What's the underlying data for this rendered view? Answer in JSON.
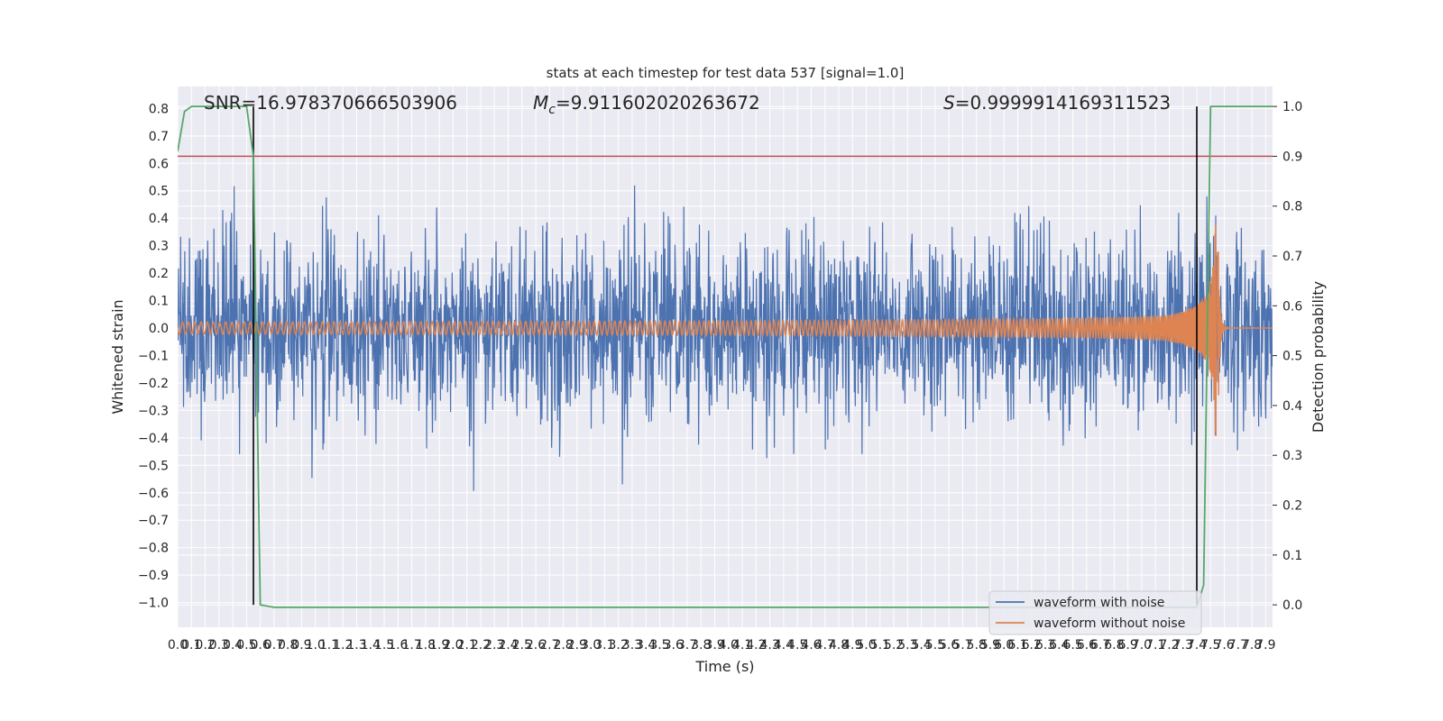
{
  "chart_data": {
    "type": "line",
    "title": "stats at each timestep for test data 537 [signal=1.0]",
    "xlabel": "Time (s)",
    "ylabel": "Whitened strain",
    "y2label": "Detection probability",
    "xlim": [
      0.0,
      7.95
    ],
    "ylim": [
      -1.09,
      0.88
    ],
    "y2lim": [
      -0.045,
      1.04
    ],
    "x_ticks": [
      "0.0",
      "0.1",
      "0.2",
      "0.3",
      "0.4",
      "0.5",
      "0.6",
      "0.7",
      "0.8",
      "0.9",
      "1.0",
      "1.1",
      "1.2",
      "1.3",
      "1.4",
      "1.5",
      "1.6",
      "1.7",
      "1.8",
      "1.9",
      "2.0",
      "2.1",
      "2.2",
      "2.3",
      "2.4",
      "2.5",
      "2.6",
      "2.7",
      "2.8",
      "2.9",
      "3.0",
      "3.1",
      "3.2",
      "3.3",
      "3.4",
      "3.5",
      "3.6",
      "3.7",
      "3.8",
      "3.9",
      "4.0",
      "4.1",
      "4.2",
      "4.3",
      "4.4",
      "4.5",
      "4.6",
      "4.7",
      "4.8",
      "4.9",
      "5.0",
      "5.1",
      "5.2",
      "5.3",
      "5.4",
      "5.5",
      "5.6",
      "5.7",
      "5.8",
      "5.9",
      "6.0",
      "6.1",
      "6.2",
      "6.3",
      "6.4",
      "6.5",
      "6.6",
      "6.7",
      "6.8",
      "6.9",
      "7.0",
      "7.1",
      "7.2",
      "7.3",
      "7.4",
      "7.5",
      "7.6",
      "7.7",
      "7.8",
      "7.9"
    ],
    "y_ticks": [
      -1.0,
      -0.9,
      -0.8,
      -0.7,
      -0.6,
      -0.5,
      -0.4,
      -0.3,
      -0.2,
      -0.1,
      0.0,
      0.1,
      0.2,
      0.3,
      0.4,
      0.5,
      0.6,
      0.7,
      0.8
    ],
    "y_tick_labels": [
      "−1.0",
      "−0.9",
      "−0.8",
      "−0.7",
      "−0.6",
      "−0.5",
      "−0.4",
      "−0.3",
      "−0.2",
      "−0.1",
      "0.0",
      "0.1",
      "0.2",
      "0.3",
      "0.4",
      "0.5",
      "0.6",
      "0.7",
      "0.8"
    ],
    "y2_ticks": [
      0.0,
      0.1,
      0.2,
      0.3,
      0.4,
      0.5,
      0.6,
      0.7,
      0.8,
      0.9,
      1.0
    ],
    "y2_tick_labels": [
      "0.0",
      "0.1",
      "0.2",
      "0.3",
      "0.4",
      "0.5",
      "0.6",
      "0.7",
      "0.8",
      "0.9",
      "1.0"
    ],
    "annotations": {
      "snr": "SNR=16.978370666503906",
      "mc_prefix": "M",
      "mc_sub": "c",
      "mc_value": "=9.911602020263672",
      "s_prefix": "S",
      "s_value": "=0.9999914169311523"
    },
    "series": [
      {
        "name": "waveform with noise",
        "color": "#4c72b0",
        "axis": "left",
        "noise_std": 0.17,
        "x_range": [
          0.0,
          7.95
        ]
      },
      {
        "name": "waveform without noise",
        "color": "#dd8452",
        "axis": "left",
        "amplitude_start": 0.022,
        "peak_amplitude": 0.51,
        "peak_time": 7.55,
        "x_range": [
          0.0,
          7.95
        ]
      },
      {
        "name": "detection probability",
        "color": "#55a868",
        "axis": "right",
        "x": [
          0.0,
          0.05,
          0.1,
          0.5,
          0.55,
          0.6,
          0.7,
          7.4,
          7.45,
          7.5,
          7.95
        ],
        "y": [
          0.91,
          0.99,
          1.0,
          1.0,
          0.9,
          0.0,
          -0.005,
          -0.005,
          0.04,
          1.0,
          1.0
        ]
      }
    ],
    "threshold": {
      "value": 0.9,
      "axis": "right",
      "color": "#c44e52"
    },
    "markers": {
      "x": [
        0.55,
        7.4
      ],
      "color": "#000000"
    },
    "legend": {
      "position": "lower-right",
      "entries": [
        "waveform with noise",
        "waveform without noise"
      ]
    }
  }
}
